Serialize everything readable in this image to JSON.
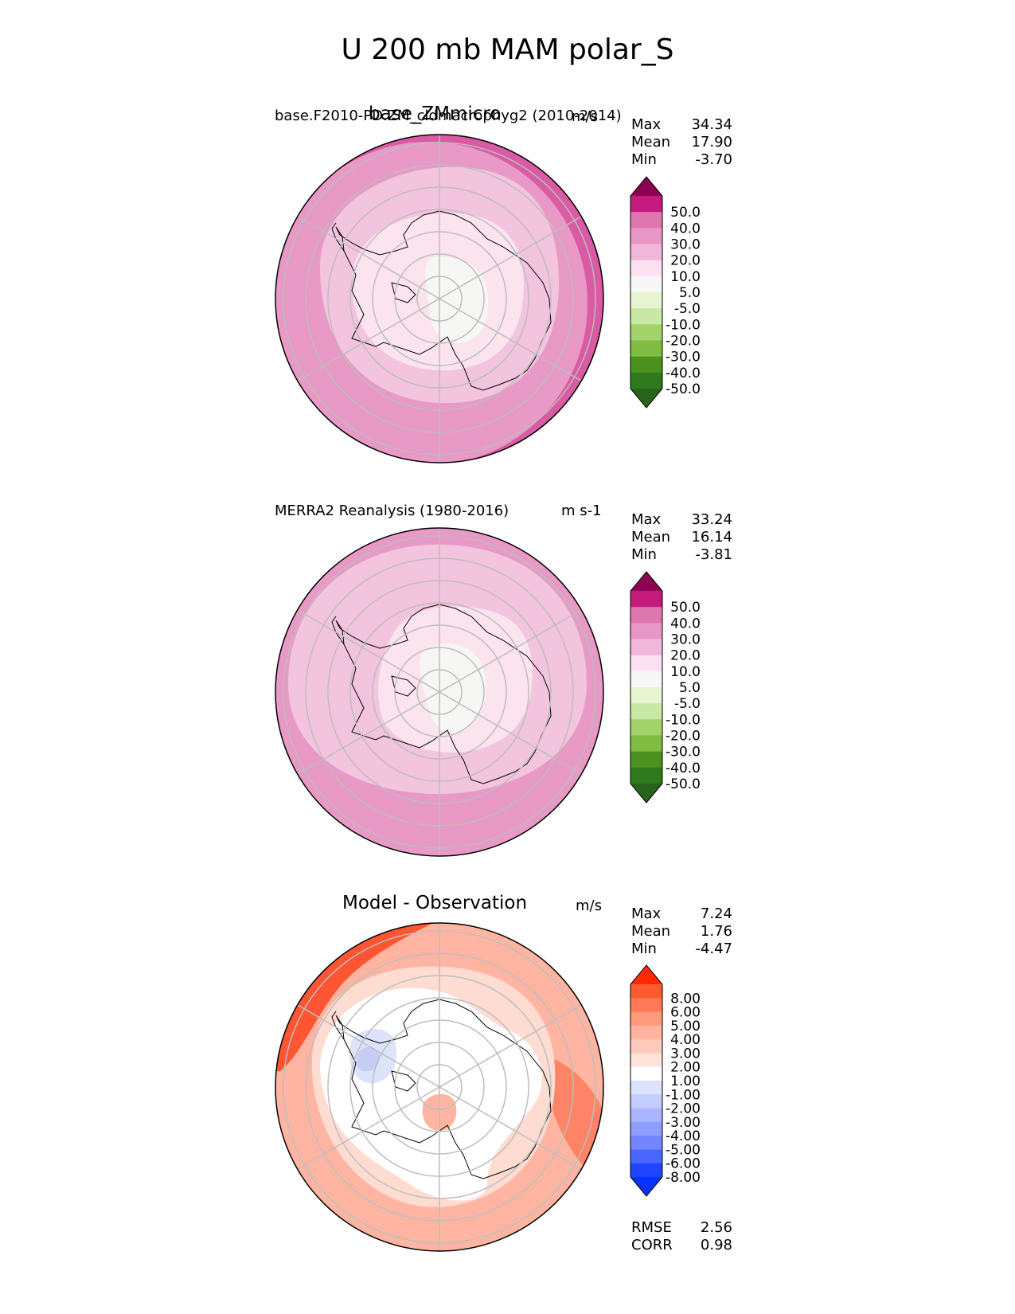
{
  "figure": {
    "title": "U 200 mb MAM polar_S"
  },
  "panels": [
    {
      "case_label": "base.F2010-PD.ZM_cldmacrophyg2 (2010-2014)",
      "overlay_title": "base_ZMmicro",
      "units": "m/s",
      "stats": {
        "max_label": "Max",
        "max": "34.34",
        "mean_label": "Mean",
        "mean": "17.90",
        "min_label": "Min",
        "min": "-3.70"
      }
    },
    {
      "case_label": "MERRA2 Reanalysis (1980-2016)",
      "units": "m s-1",
      "stats": {
        "max_label": "Max",
        "max": "33.24",
        "mean_label": "Mean",
        "mean": "16.14",
        "min_label": "Min",
        "min": "-3.81"
      }
    },
    {
      "case_label": "Model - Observation",
      "units": "m/s",
      "stats": {
        "max_label": "Max",
        "max": "7.24",
        "mean_label": "Mean",
        "mean": "1.76",
        "min_label": "Min",
        "min": "-4.47"
      },
      "metrics": {
        "rmse_label": "RMSE",
        "rmse": "2.56",
        "corr_label": "CORR",
        "corr": "0.98"
      }
    }
  ],
  "chart_data": [
    {
      "type": "heatmap",
      "projection": "south-polar stereographic",
      "variable": "U 200 mb",
      "season": "MAM",
      "title": "base.F2010-PD.ZM_cldmacrophyg2 (2010-2014)",
      "units": "m/s",
      "max": 34.34,
      "mean": 17.9,
      "min": -3.7,
      "colorbar_ticks": [
        "50.0",
        "40.0",
        "30.0",
        "20.0",
        "10.0",
        "5.0",
        "-5.0",
        "-10.0",
        "-20.0",
        "-30.0",
        "-40.0",
        "-50.0"
      ],
      "colorbar_colors": [
        "#8e0152",
        "#c51b7d",
        "#de77ae",
        "#e897c4",
        "#f1b6da",
        "#fde0ef",
        "#f7f7f7",
        "#e6f5d0",
        "#c8e8a5",
        "#a2d26a",
        "#7fbc41",
        "#4d9221",
        "#2f7a1f",
        "#276419"
      ],
      "field_bands": [
        {
          "value_range": [
            -5,
            5
          ],
          "color": "#f6f6f4"
        },
        {
          "value_range": [
            5,
            10
          ],
          "color": "#fce4ef"
        },
        {
          "value_range": [
            10,
            20
          ],
          "color": "#f3c4de"
        },
        {
          "value_range": [
            20,
            30
          ],
          "color": "#e899c6"
        },
        {
          "value_range": [
            30,
            40
          ],
          "color": "#d85ba3"
        }
      ]
    },
    {
      "type": "heatmap",
      "projection": "south-polar stereographic",
      "variable": "U 200 mb",
      "season": "MAM",
      "title": "MERRA2 Reanalysis (1980-2016)",
      "units": "m s-1",
      "max": 33.24,
      "mean": 16.14,
      "min": -3.81,
      "colorbar_ticks": [
        "50.0",
        "40.0",
        "30.0",
        "20.0",
        "10.0",
        "5.0",
        "-5.0",
        "-10.0",
        "-20.0",
        "-30.0",
        "-40.0",
        "-50.0"
      ],
      "colorbar_colors": [
        "#8e0152",
        "#c51b7d",
        "#de77ae",
        "#e897c4",
        "#f1b6da",
        "#fde0ef",
        "#f7f7f7",
        "#e6f5d0",
        "#c8e8a5",
        "#a2d26a",
        "#7fbc41",
        "#4d9221",
        "#2f7a1f",
        "#276419"
      ],
      "field_bands": [
        {
          "value_range": [
            -5,
            5
          ],
          "color": "#f6f6f4"
        },
        {
          "value_range": [
            5,
            10
          ],
          "color": "#fce4ef"
        },
        {
          "value_range": [
            10,
            20
          ],
          "color": "#f3c4de"
        },
        {
          "value_range": [
            20,
            30
          ],
          "color": "#e899c6"
        },
        {
          "value_range": [
            30,
            40
          ],
          "color": "#d85ba3"
        }
      ]
    },
    {
      "type": "heatmap",
      "projection": "south-polar stereographic",
      "variable": "U 200 mb difference",
      "season": "MAM",
      "title": "Model - Observation",
      "units": "m/s",
      "max": 7.24,
      "mean": 1.76,
      "min": -4.47,
      "rmse": 2.56,
      "corr": 0.98,
      "colorbar_ticks": [
        "8.00",
        "6.00",
        "5.00",
        "4.00",
        "3.00",
        "2.00",
        "1.00",
        "-1.00",
        "-2.00",
        "-3.00",
        "-4.00",
        "-5.00",
        "-6.00",
        "-8.00"
      ],
      "colorbar_colors": [
        "#ff2a00",
        "#ff5a2e",
        "#ff7a55",
        "#ff9a7d",
        "#ffb3a0",
        "#ffcab9",
        "#ffe3da",
        "#ffffff",
        "#dde3ff",
        "#c4cdff",
        "#a9b6ff",
        "#8e9eff",
        "#7386ff",
        "#4a68ff",
        "#1f45ff",
        "#0a32ff"
      ],
      "field_bands": [
        {
          "value_range": [
            -5,
            -2
          ],
          "color": "#c5cdf4"
        },
        {
          "value_range": [
            -2,
            -1
          ],
          "color": "#dde3fb"
        },
        {
          "value_range": [
            -1,
            1
          ],
          "color": "#ffffff"
        },
        {
          "value_range": [
            1,
            2
          ],
          "color": "#ffdcd2"
        },
        {
          "value_range": [
            2,
            4
          ],
          "color": "#ffb5a2"
        },
        {
          "value_range": [
            4,
            6
          ],
          "color": "#ff8366"
        },
        {
          "value_range": [
            6,
            8
          ],
          "color": "#ff5533"
        }
      ]
    }
  ]
}
